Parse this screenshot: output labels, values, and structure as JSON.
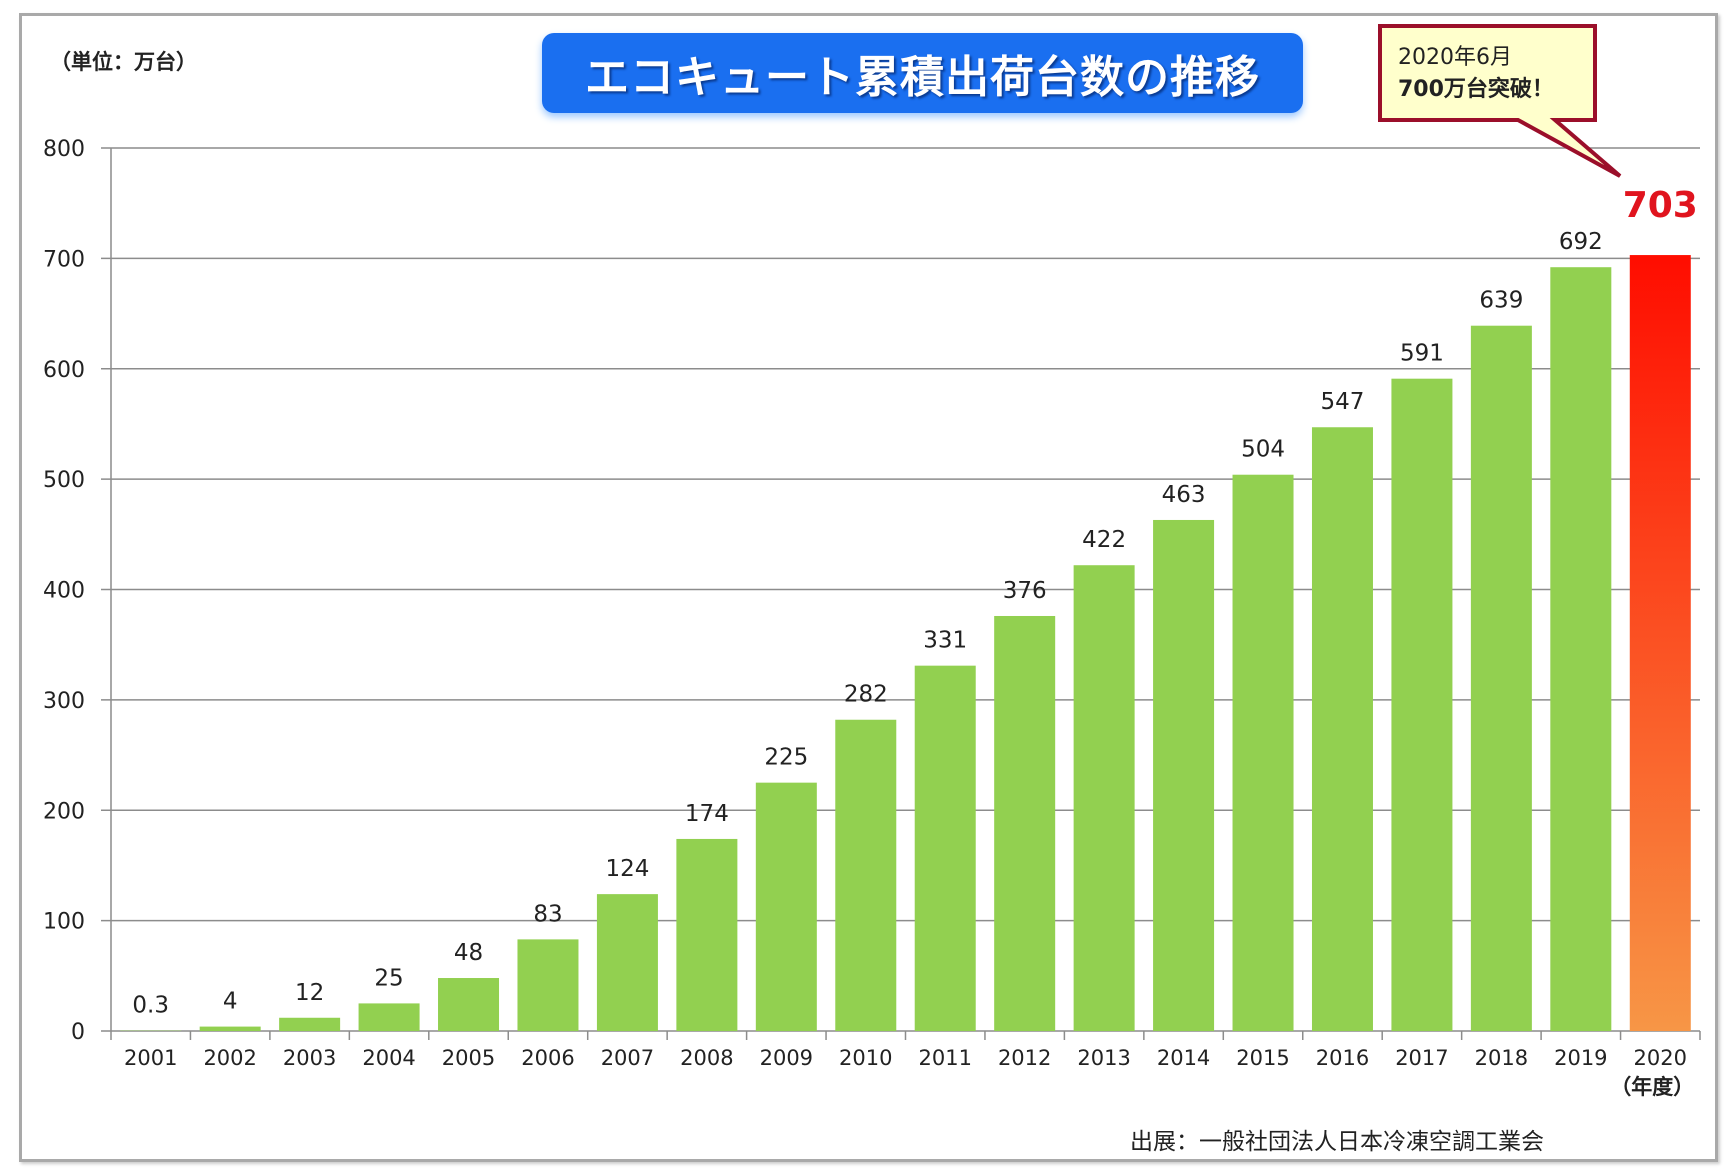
{
  "chart_data": {
    "type": "bar",
    "title": "エコキュート累積出荷台数の推移",
    "unit_label": "（単位：万台）",
    "xlabel": "（年度）",
    "ylabel": "",
    "ylim": [
      0,
      800
    ],
    "yticks": [
      "0",
      "100",
      "200",
      "300",
      "400",
      "500",
      "600",
      "700",
      "800"
    ],
    "grid": true,
    "categories": [
      "2001",
      "2002",
      "2003",
      "2004",
      "2005",
      "2006",
      "2007",
      "2008",
      "2009",
      "2010",
      "2011",
      "2012",
      "2013",
      "2014",
      "2015",
      "2016",
      "2017",
      "2018",
      "2019",
      "2020"
    ],
    "values": [
      0.3,
      4,
      12,
      25,
      48,
      83,
      124,
      174,
      225,
      282,
      331,
      376,
      422,
      463,
      504,
      547,
      591,
      639,
      692,
      703
    ],
    "value_labels": [
      "0.3",
      "4",
      "12",
      "25",
      "48",
      "83",
      "124",
      "174",
      "225",
      "282",
      "331",
      "376",
      "422",
      "463",
      "504",
      "547",
      "591",
      "639",
      "692",
      "703"
    ],
    "callout": {
      "line1": "2020年6月",
      "line2": "700万台突破！"
    },
    "source": "出展：一般社団法人日本冷凍空調工業会",
    "colors": {
      "bar": "#92d050",
      "highlight_top": "#ff0d00",
      "highlight_bottom": "#f79646",
      "highlight_label": "#e0141e",
      "title_bg": "#1a6ff0",
      "callout_border": "#9b0f2a",
      "callout_bg": "#ffffcc"
    }
  }
}
